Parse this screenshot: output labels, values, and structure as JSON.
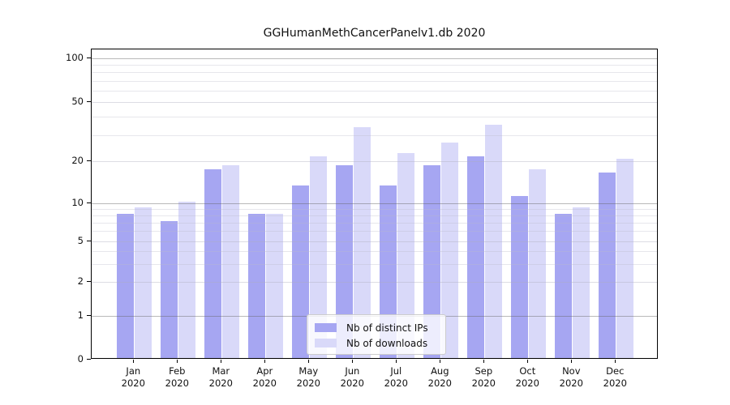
{
  "figure": {
    "title": "GGHumanMethCancerPanelv1.db 2020"
  },
  "chart_data": {
    "type": "bar",
    "title": "GGHumanMethCancerPanelv1.db 2020",
    "categories": [
      "Jan",
      "Feb",
      "Mar",
      "Apr",
      "May",
      "Jun",
      "Jul",
      "Aug",
      "Sep",
      "Oct",
      "Nov",
      "Dec"
    ],
    "x_year_line": "2020",
    "series": [
      {
        "name": "Nb of distinct IPs",
        "color": "#a6a6f2",
        "values": [
          8,
          7,
          17,
          8,
          13,
          18,
          13,
          18,
          21,
          11,
          8,
          16
        ]
      },
      {
        "name": "Nb of downloads",
        "color": "#d9d9f9",
        "values": [
          9,
          10,
          18,
          8,
          21,
          33,
          22,
          26,
          34,
          17,
          9,
          20
        ]
      }
    ],
    "yscale": "log-with-zero-baseline",
    "yticks": [
      100,
      50,
      20,
      10,
      5,
      2,
      1,
      0
    ],
    "ytick_labels": [
      "100",
      "50",
      "20",
      "10",
      "5",
      "2",
      "1",
      "0"
    ],
    "minor_yticks": [
      3,
      4,
      6,
      7,
      8,
      9,
      30,
      40,
      60,
      70,
      80,
      90
    ],
    "ylim": [
      0,
      120
    ],
    "xlabel": "",
    "ylabel": "",
    "grid": "horizontal",
    "legend": {
      "position": "lower-center",
      "entries": [
        "Nb of distinct IPs",
        "Nb of downloads"
      ]
    }
  },
  "colors": {
    "bar_distinct_ips": "#a6a6f2",
    "bar_downloads": "#d9d9f9",
    "grid_major": "#b3b3b3",
    "grid_minor": "#e8e8ee",
    "axis": "#000000",
    "background": "#ffffff"
  }
}
